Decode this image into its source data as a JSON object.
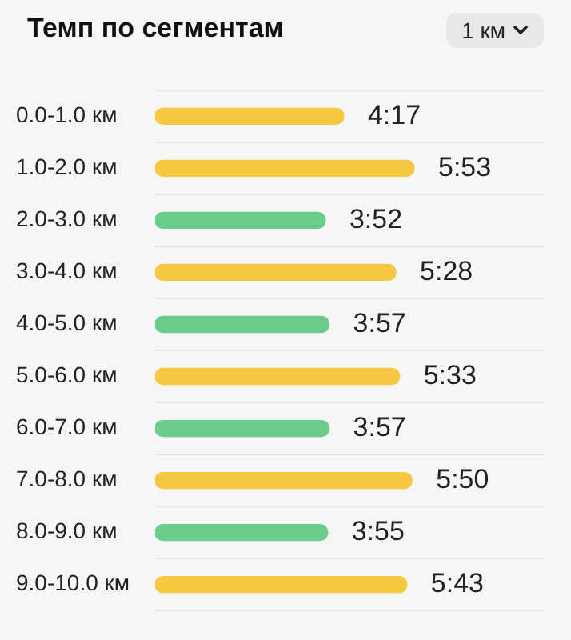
{
  "chart_data": {
    "type": "bar",
    "orientation": "horizontal",
    "title": "Темп по сегментам",
    "annotations": [
      "1 км"
    ],
    "categories": [
      "0.0-1.0 км",
      "1.0-2.0 км",
      "2.0-3.0 км",
      "3.0-4.0 км",
      "4.0-5.0 км",
      "5.0-6.0 км",
      "6.0-7.0 км",
      "7.0-8.0 км",
      "8.0-9.0 км",
      "9.0-10.0 км"
    ],
    "values": [
      257,
      353,
      232,
      328,
      237,
      333,
      237,
      350,
      235,
      343
    ],
    "value_labels": [
      "4:17",
      "5:53",
      "3:52",
      "5:28",
      "3:57",
      "5:33",
      "3:57",
      "5:50",
      "3:55",
      "5:43"
    ],
    "colors": [
      "#f5c842",
      "#f5c842",
      "#6acd8c",
      "#f5c842",
      "#6acd8c",
      "#f5c842",
      "#6acd8c",
      "#f5c842",
      "#6acd8c",
      "#f5c842"
    ],
    "grid": "y",
    "legend": false
  }
}
